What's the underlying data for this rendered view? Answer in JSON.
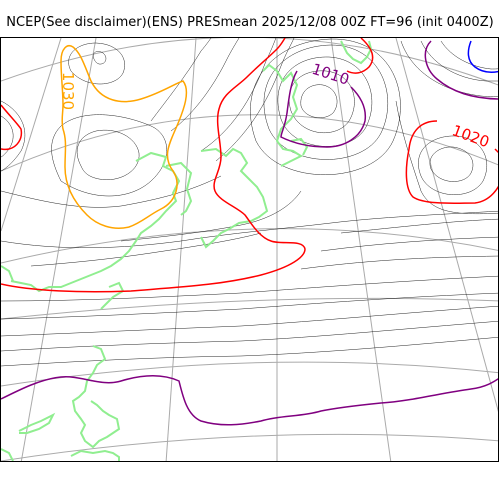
{
  "title": "NCEP(See disclaimer)(ENS) PRESmean 2025/12/08 00Z FT=96 (init 0400Z)",
  "map": {
    "labels": [
      {
        "text": "1030",
        "color": "#ffa500"
      },
      {
        "text": "1010",
        "color": "#800080"
      },
      {
        "text": "1020",
        "color": "#ff0000"
      }
    ],
    "colors": {
      "isobar_1030": "#ffa500",
      "isobar_1020": "#ff0000",
      "isobar_1010": "#800080",
      "isobar_1000": "#0000ff",
      "isobar_other": "#000000",
      "coastline": "#90ee90",
      "graticule": "#aaaaaa"
    }
  }
}
